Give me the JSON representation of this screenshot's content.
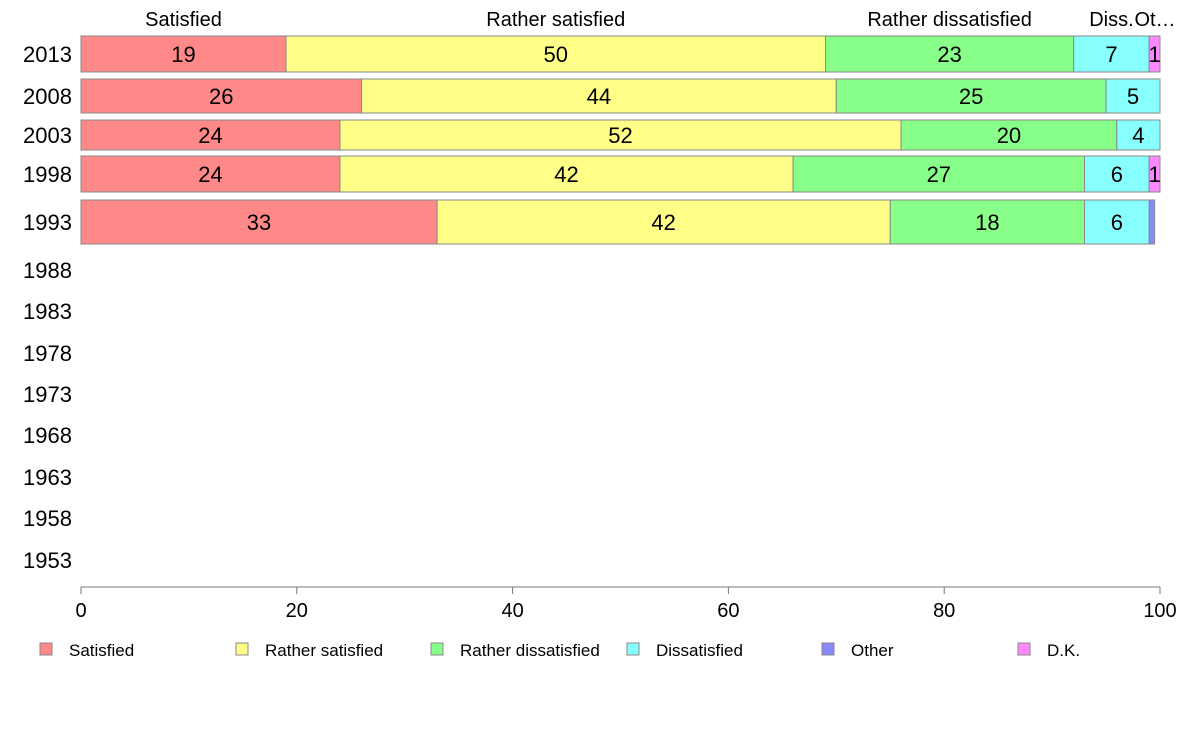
{
  "chart_data": {
    "type": "bar",
    "orientation": "horizontal",
    "stacked": true,
    "categories": [
      "2013",
      "2008",
      "2003",
      "1998",
      "1993",
      "1988",
      "1983",
      "1978",
      "1973",
      "1968",
      "1963",
      "1958",
      "1953"
    ],
    "series": [
      {
        "name": "Satisfied",
        "color": "#ff8888",
        "values": [
          19,
          26,
          24,
          24,
          33,
          null,
          null,
          null,
          null,
          null,
          null,
          null,
          null
        ]
      },
      {
        "name": "Rather satisfied",
        "color": "#ffff88",
        "values": [
          50,
          44,
          52,
          42,
          42,
          null,
          null,
          null,
          null,
          null,
          null,
          null,
          null
        ]
      },
      {
        "name": "Rather dissatisfied",
        "color": "#88ff88",
        "values": [
          23,
          25,
          20,
          27,
          18,
          null,
          null,
          null,
          null,
          null,
          null,
          null,
          null
        ]
      },
      {
        "name": "Dissatisfied",
        "color": "#88ffff",
        "values": [
          7,
          5,
          4,
          6,
          6,
          null,
          null,
          null,
          null,
          null,
          null,
          null,
          null
        ]
      },
      {
        "name": "Other",
        "color": "#8888ff",
        "values": [
          0,
          0,
          0,
          0,
          0.5,
          null,
          null,
          null,
          null,
          null,
          null,
          null,
          null
        ]
      },
      {
        "name": "D.K.",
        "color": "#ff88ff",
        "values": [
          1,
          0,
          0,
          1,
          0,
          null,
          null,
          null,
          null,
          null,
          null,
          null,
          null
        ]
      }
    ],
    "top_labels": [
      "Satisfied",
      "Rather satisfied",
      "Rather dissatisfied",
      "Diss.",
      "Ot…"
    ],
    "x_ticks": [
      0,
      20,
      40,
      60,
      80,
      100
    ],
    "xlim": [
      0,
      100
    ],
    "xlabel": "",
    "ylabel": "",
    "title": "",
    "grid": false,
    "legend_position": "bottom"
  }
}
